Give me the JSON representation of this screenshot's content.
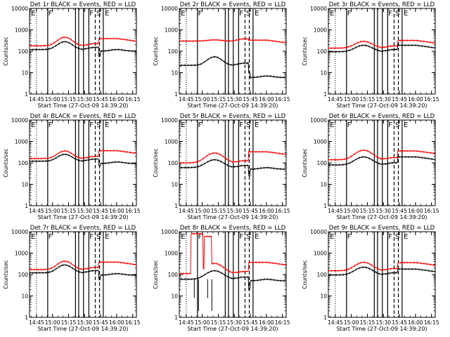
{
  "chart_data": [
    {
      "type": "line",
      "title": "Det 1r BLACK = Events, RED = LLD",
      "ylabel": "Counts/sec",
      "xlabel": "Start Time (27-Oct-09 14:39:20)",
      "x_ticks": [
        "14:45",
        "15:00",
        "15:15",
        "15:30",
        "15:45",
        "16:00",
        "16:15"
      ],
      "y_ticks": [
        "1",
        "10",
        "100",
        "1000",
        "10000"
      ],
      "y_scale": "log",
      "ylim": [
        1,
        10000
      ],
      "xlim_minutes": [
        0,
        100
      ],
      "flag_lines": {
        "dotted": [
          6.5
        ],
        "solid": [
          17,
          43,
          46,
          50.5,
          55.5,
          69
        ],
        "dashed": [
          61.5,
          65.5
        ]
      },
      "flag_letters": [
        {
          "t": 1.5,
          "text": "E"
        },
        {
          "t": 17.5,
          "text": "F"
        },
        {
          "t": 56,
          "text": "F"
        },
        {
          "t": 62.5,
          "text": "S"
        },
        {
          "t": 70.5,
          "text": "E"
        }
      ],
      "series": [
        {
          "color": "#ff0000",
          "base": 180,
          "peak": 450,
          "peak_t": 33,
          "width": 6,
          "dip": 0,
          "step_t": 65,
          "tail": 390
        },
        {
          "color": "#000000",
          "base": 120,
          "peak": 280,
          "peak_t": 33,
          "width": 6,
          "dip": 60,
          "step_t": 65,
          "tail": 120
        }
      ]
    },
    {
      "type": "line",
      "title": "Det 2r BLACK = Events, RED = LLD",
      "ylabel": "Counts/sec",
      "xlabel": "Start Time (27-Oct-09 14:39:20)",
      "x_ticks": [
        "14:45",
        "15:00",
        "15:15",
        "15:30",
        "15:45",
        "16:00",
        "16:15"
      ],
      "y_ticks": [
        "1",
        "10",
        "100",
        "1000",
        "10000"
      ],
      "y_scale": "log",
      "ylim": [
        1,
        10000
      ],
      "xlim_minutes": [
        0,
        100
      ],
      "flag_lines": {
        "dotted": [
          6.5
        ],
        "solid": [
          17,
          43,
          46,
          50.5,
          55.5,
          69
        ],
        "dashed": [
          61.5,
          65.5
        ]
      },
      "flag_letters": [
        {
          "t": 1.5,
          "text": "E"
        },
        {
          "t": 17.5,
          "text": "F"
        },
        {
          "t": 56,
          "text": "F"
        },
        {
          "t": 62.5,
          "text": "S"
        },
        {
          "t": 70.5,
          "text": "E"
        }
      ],
      "series": [
        {
          "color": "#ff0000",
          "base": 300,
          "peak": 340,
          "peak_t": 33,
          "width": 6,
          "dip": 0,
          "step_t": 65,
          "tail": 330
        },
        {
          "color": "#000000",
          "base": 22,
          "peak": 55,
          "peak_t": 33,
          "width": 6,
          "dip": 10,
          "step_t": 65,
          "tail": 7
        }
      ]
    },
    {
      "type": "line",
      "title": "Det 3r BLACK = Events, RED = LLD",
      "ylabel": "Counts/sec",
      "xlabel": "Start Time (27-Oct-09 14:39:20)",
      "x_ticks": [
        "14:45",
        "15:00",
        "15:15",
        "15:30",
        "15:45",
        "16:00",
        "16:15"
      ],
      "y_ticks": [
        "1",
        "10",
        "100",
        "1000",
        "10000"
      ],
      "y_scale": "log",
      "ylim": [
        1,
        10000
      ],
      "xlim_minutes": [
        0,
        100
      ],
      "flag_lines": {
        "dotted": [
          6.5
        ],
        "solid": [
          17,
          43,
          46,
          50.5,
          55.5,
          69
        ],
        "dashed": [
          61.5,
          65.5
        ]
      },
      "flag_letters": [
        {
          "t": 1.5,
          "text": "E"
        },
        {
          "t": 17.5,
          "text": "F"
        },
        {
          "t": 56,
          "text": "F"
        },
        {
          "t": 62.5,
          "text": "S"
        },
        {
          "t": 70.5,
          "text": "E"
        }
      ],
      "series": [
        {
          "color": "#ff0000",
          "base": 140,
          "peak": 290,
          "peak_t": 33,
          "width": 7,
          "dip": 0,
          "step_t": 65,
          "tail": 320
        },
        {
          "color": "#000000",
          "base": 95,
          "peak": 190,
          "peak_t": 33,
          "width": 7,
          "dip": 0,
          "step_t": 65,
          "tail": 190
        }
      ]
    },
    {
      "type": "line",
      "title": "Det 4r BLACK = Events, RED = LLD",
      "ylabel": "Counts/sec",
      "xlabel": "Start Time (27-Oct-09 14:39:20)",
      "x_ticks": [
        "14:45",
        "15:00",
        "15:15",
        "15:30",
        "15:45",
        "16:00",
        "16:15"
      ],
      "y_ticks": [
        "1",
        "10",
        "100",
        "1000",
        "10000"
      ],
      "y_scale": "log",
      "ylim": [
        1,
        10000
      ],
      "xlim_minutes": [
        0,
        100
      ],
      "flag_lines": {
        "dotted": [
          6.5
        ],
        "solid": [
          17,
          43,
          46,
          50.5,
          55.5,
          69
        ],
        "dashed": [
          61.5,
          65.5
        ]
      },
      "flag_letters": [
        {
          "t": 1.5,
          "text": "E"
        },
        {
          "t": 17.5,
          "text": "F"
        },
        {
          "t": 56,
          "text": "F"
        },
        {
          "t": 62.5,
          "text": "S"
        },
        {
          "t": 70.5,
          "text": "E"
        }
      ],
      "series": [
        {
          "color": "#ff0000",
          "base": 160,
          "peak": 360,
          "peak_t": 33,
          "width": 6,
          "dip": 0,
          "step_t": 65,
          "tail": 370
        },
        {
          "color": "#000000",
          "base": 120,
          "peak": 250,
          "peak_t": 33,
          "width": 6,
          "dip": 70,
          "step_t": 65,
          "tail": 110
        }
      ]
    },
    {
      "type": "line",
      "title": "Det 5r BLACK = Events, RED = LLD",
      "ylabel": "Counts/sec",
      "xlabel": "Start Time (27-Oct-09 14:39:20)",
      "x_ticks": [
        "14:45",
        "15:00",
        "15:15",
        "15:30",
        "15:45",
        "16:00",
        "16:15"
      ],
      "y_ticks": [
        "1",
        "10",
        "100",
        "1000",
        "10000"
      ],
      "y_scale": "log",
      "ylim": [
        1,
        10000
      ],
      "xlim_minutes": [
        0,
        100
      ],
      "flag_lines": {
        "dotted": [
          6.5
        ],
        "solid": [
          17,
          43,
          46,
          50.5,
          55.5,
          69
        ],
        "dashed": [
          61.5,
          65.5
        ]
      },
      "flag_letters": [
        {
          "t": 1.5,
          "text": "E"
        },
        {
          "t": 17.5,
          "text": "F"
        },
        {
          "t": 56,
          "text": "F"
        },
        {
          "t": 62.5,
          "text": "S"
        },
        {
          "t": 70.5,
          "text": "E"
        }
      ],
      "series": [
        {
          "color": "#ff0000",
          "base": 100,
          "peak": 290,
          "peak_t": 33,
          "width": 7,
          "dip": 0,
          "step_t": 65,
          "tail": 330
        },
        {
          "color": "#000000",
          "base": 60,
          "peak": 140,
          "peak_t": 33,
          "width": 7,
          "dip": 25,
          "step_t": 65,
          "tail": 60
        }
      ]
    },
    {
      "type": "line",
      "title": "Det 6r BLACK = Events, RED = LLD",
      "ylabel": "Counts/sec",
      "xlabel": "Start Time (27-Oct-09 14:39:20)",
      "x_ticks": [
        "14:45",
        "15:00",
        "15:15",
        "15:30",
        "15:45",
        "16:00",
        "16:15"
      ],
      "y_ticks": [
        "1",
        "10",
        "100",
        "1000",
        "10000"
      ],
      "y_scale": "log",
      "ylim": [
        1,
        10000
      ],
      "xlim_minutes": [
        0,
        100
      ],
      "flag_lines": {
        "dotted": [
          6.5
        ],
        "solid": [
          17,
          43,
          46,
          50.5,
          55.5,
          69
        ],
        "dashed": [
          61.5,
          65.5
        ]
      },
      "flag_letters": [
        {
          "t": 1.5,
          "text": "E"
        },
        {
          "t": 17.5,
          "text": "F"
        },
        {
          "t": 56,
          "text": "F"
        },
        {
          "t": 62.5,
          "text": "S"
        },
        {
          "t": 70.5,
          "text": "E"
        }
      ],
      "series": [
        {
          "color": "#ff0000",
          "base": 140,
          "peak": 390,
          "peak_t": 33,
          "width": 7,
          "dip": 0,
          "step_t": 65,
          "tail": 360
        },
        {
          "color": "#000000",
          "base": 80,
          "peak": 190,
          "peak_t": 33,
          "width": 7,
          "dip": 0,
          "step_t": 65,
          "tail": 190
        }
      ]
    },
    {
      "type": "line",
      "title": "Det 7r BLACK = Events, RED = LLD",
      "ylabel": "Counts/sec",
      "xlabel": "Start Time (27-Oct-09 14:39:20)",
      "x_ticks": [
        "14:45",
        "15:00",
        "15:15",
        "15:30",
        "15:45",
        "16:00",
        "16:15"
      ],
      "y_ticks": [
        "1",
        "10",
        "100",
        "1000",
        "10000"
      ],
      "y_scale": "log",
      "ylim": [
        1,
        10000
      ],
      "xlim_minutes": [
        0,
        100
      ],
      "flag_lines": {
        "dotted": [
          6.5
        ],
        "solid": [
          17,
          43,
          46,
          50.5,
          55.5,
          69
        ],
        "dashed": [
          61.5,
          65.5
        ]
      },
      "flag_letters": [
        {
          "t": 1.5,
          "text": "E"
        },
        {
          "t": 17.5,
          "text": "F"
        },
        {
          "t": 56,
          "text": "F"
        },
        {
          "t": 62.5,
          "text": "S"
        },
        {
          "t": 70.5,
          "text": "E"
        }
      ],
      "series": [
        {
          "color": "#ff0000",
          "base": 170,
          "peak": 420,
          "peak_t": 33,
          "width": 6,
          "dip": 0,
          "step_t": 65,
          "tail": 380
        },
        {
          "color": "#000000",
          "base": 120,
          "peak": 280,
          "peak_t": 33,
          "width": 6,
          "dip": 60,
          "step_t": 65,
          "tail": 110
        }
      ]
    },
    {
      "type": "line",
      "title": "Det 8r BLACK = Events, RED = LLD",
      "ylabel": "Counts/sec",
      "xlabel": "Start Time (27-Oct-09 14:39:20)",
      "x_ticks": [
        "14:45",
        "15:00",
        "15:15",
        "15:30",
        "15:45",
        "16:00",
        "16:15"
      ],
      "y_ticks": [
        "1",
        "10",
        "100",
        "1000",
        "10000"
      ],
      "y_scale": "log",
      "ylim": [
        1,
        10000
      ],
      "xlim_minutes": [
        0,
        100
      ],
      "flag_lines": {
        "dotted": [
          6.5
        ],
        "solid": [
          17,
          43,
          46,
          50.5,
          55.5,
          69
        ],
        "dashed": [
          61.5,
          65.5
        ]
      },
      "flag_letters": [
        {
          "t": 1.5,
          "text": "E"
        },
        {
          "t": 17.5,
          "text": "F"
        },
        {
          "t": 56,
          "text": "F"
        },
        {
          "t": 62.5,
          "text": "S"
        },
        {
          "t": 70.5,
          "text": "E"
        }
      ],
      "bursts": [
        [
          11,
          22,
          8000
        ],
        [
          23.5,
          30,
          6000
        ]
      ],
      "series": [
        {
          "color": "#ff0000",
          "base": 110,
          "peak": 330,
          "peak_t": 33,
          "width": 7,
          "dip": 0,
          "step_t": 65,
          "tail": 370
        },
        {
          "color": "#000000",
          "base": 60,
          "peak": 150,
          "peak_t": 33,
          "width": 7,
          "dip": 20,
          "step_t": 65,
          "tail": 60
        }
      ]
    },
    {
      "type": "line",
      "title": "Det 9r BLACK = Events, RED = LLD",
      "ylabel": "Counts/sec",
      "xlabel": "Start Time (27-Oct-09 14:39:20)",
      "x_ticks": [
        "14:45",
        "15:00",
        "15:15",
        "15:30",
        "15:45",
        "16:00",
        "16:15"
      ],
      "y_ticks": [
        "1",
        "10",
        "100",
        "1000",
        "10000"
      ],
      "y_scale": "log",
      "ylim": [
        1,
        10000
      ],
      "xlim_minutes": [
        0,
        100
      ],
      "flag_lines": {
        "dotted": [
          6.5
        ],
        "solid": [
          17,
          43,
          46,
          50.5,
          55.5,
          69
        ],
        "dashed": [
          61.5,
          65.5
        ]
      },
      "flag_letters": [
        {
          "t": 1.5,
          "text": "E"
        },
        {
          "t": 17.5,
          "text": "F"
        },
        {
          "t": 56,
          "text": "F"
        },
        {
          "t": 62.5,
          "text": "S"
        },
        {
          "t": 70.5,
          "text": "E"
        }
      ],
      "series": [
        {
          "color": "#ff0000",
          "base": 150,
          "peak": 370,
          "peak_t": 33,
          "width": 7,
          "dip": 0,
          "step_t": 65,
          "tail": 360
        },
        {
          "color": "#000000",
          "base": 95,
          "peak": 220,
          "peak_t": 33,
          "width": 7,
          "dip": 0,
          "step_t": 65,
          "tail": 180
        }
      ]
    }
  ]
}
